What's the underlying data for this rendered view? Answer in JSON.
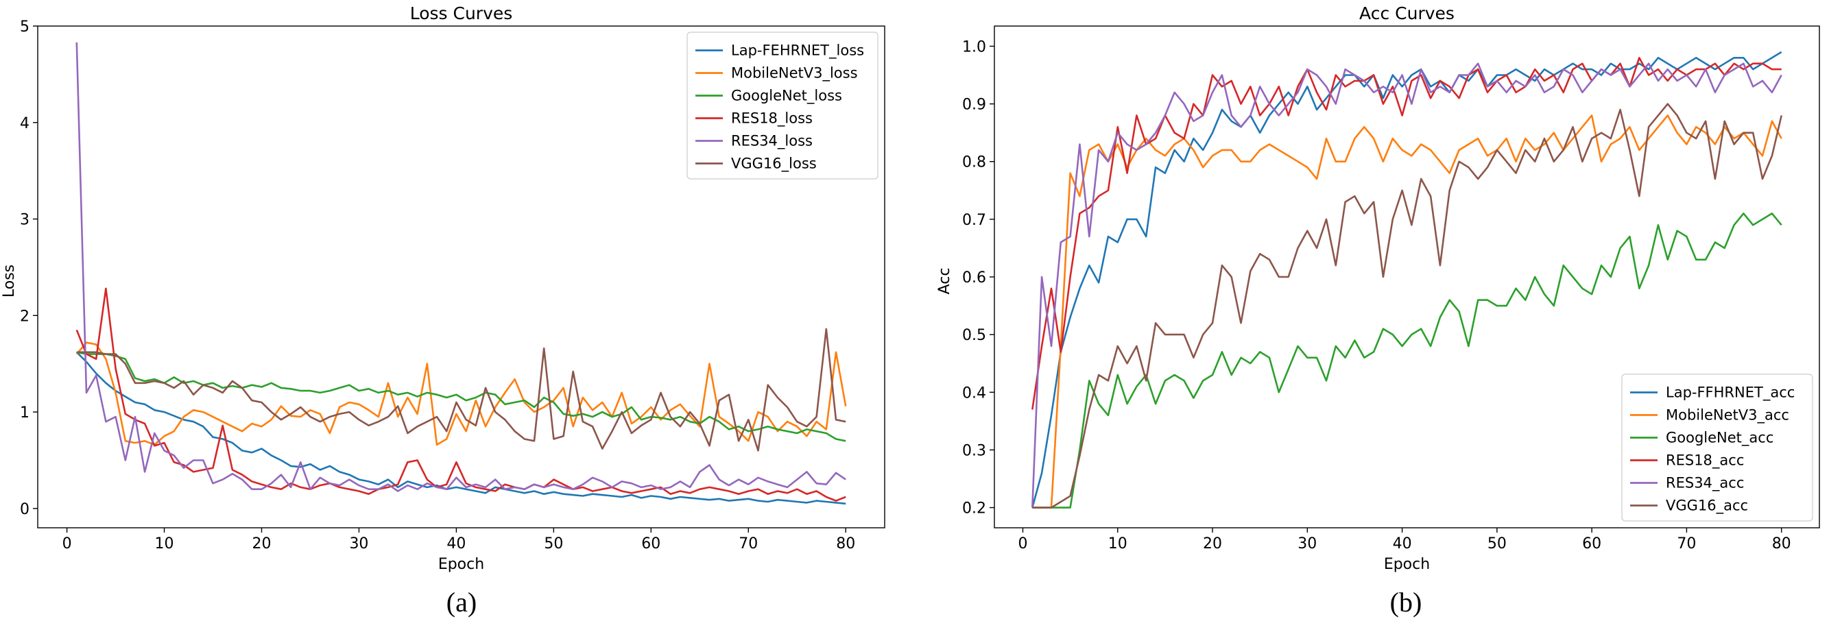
{
  "chart_data": [
    {
      "type": "line",
      "title": "Loss Curves",
      "xlabel": "Epoch",
      "ylabel": "Loss",
      "caption": "(a)",
      "xlim": [
        -3,
        84
      ],
      "ylim": [
        -0.2,
        5.0
      ],
      "xticks": [
        0,
        10,
        20,
        30,
        40,
        50,
        60,
        70,
        80
      ],
      "yticks": [
        0,
        1,
        2,
        3,
        4,
        5
      ],
      "legend_position": "top-right",
      "series": [
        {
          "name": "Lap-FEHRNET_loss",
          "color": "#1f77b4",
          "values": [
            1.62,
            1.52,
            1.4,
            1.3,
            1.22,
            1.16,
            1.1,
            1.08,
            1.02,
            1.0,
            0.96,
            0.92,
            0.9,
            0.85,
            0.74,
            0.72,
            0.68,
            0.6,
            0.58,
            0.62,
            0.55,
            0.5,
            0.44,
            0.43,
            0.46,
            0.4,
            0.44,
            0.38,
            0.35,
            0.3,
            0.28,
            0.25,
            0.3,
            0.22,
            0.28,
            0.25,
            0.22,
            0.24,
            0.2,
            0.22,
            0.2,
            0.18,
            0.16,
            0.22,
            0.2,
            0.18,
            0.16,
            0.18,
            0.15,
            0.17,
            0.15,
            0.14,
            0.13,
            0.15,
            0.14,
            0.13,
            0.12,
            0.14,
            0.11,
            0.13,
            0.12,
            0.1,
            0.12,
            0.11,
            0.1,
            0.09,
            0.1,
            0.08,
            0.09,
            0.1,
            0.08,
            0.07,
            0.09,
            0.08,
            0.07,
            0.06,
            0.08,
            0.07,
            0.06,
            0.05
          ]
        },
        {
          "name": "MobileNetV3_loss",
          "color": "#ff7f0e",
          "values": [
            1.6,
            1.72,
            1.7,
            1.55,
            1.2,
            0.7,
            0.68,
            0.7,
            0.66,
            0.75,
            0.8,
            0.95,
            1.02,
            1.0,
            0.95,
            0.9,
            0.85,
            0.8,
            0.88,
            0.85,
            0.92,
            1.06,
            0.96,
            0.95,
            1.02,
            0.98,
            0.78,
            1.05,
            1.1,
            1.08,
            1.02,
            0.95,
            1.3,
            0.95,
            1.15,
            0.98,
            1.5,
            0.66,
            0.72,
            0.98,
            0.8,
            1.12,
            0.85,
            1.05,
            1.2,
            1.34,
            1.1,
            1.0,
            1.05,
            1.12,
            1.25,
            0.85,
            1.15,
            1.02,
            1.1,
            0.95,
            1.2,
            0.88,
            0.95,
            1.05,
            0.92,
            1.02,
            1.08,
            0.96,
            0.85,
            1.5,
            0.95,
            0.88,
            0.8,
            0.7,
            1.0,
            0.95,
            0.8,
            0.9,
            0.85,
            0.75,
            0.9,
            0.82,
            1.62,
            1.06
          ]
        },
        {
          "name": "GoogleNet_loss",
          "color": "#2ca02c",
          "values": [
            1.62,
            1.6,
            1.6,
            1.6,
            1.58,
            1.55,
            1.35,
            1.32,
            1.34,
            1.3,
            1.36,
            1.3,
            1.32,
            1.28,
            1.3,
            1.25,
            1.27,
            1.25,
            1.28,
            1.26,
            1.3,
            1.25,
            1.24,
            1.22,
            1.22,
            1.2,
            1.22,
            1.25,
            1.28,
            1.22,
            1.24,
            1.2,
            1.22,
            1.18,
            1.2,
            1.16,
            1.2,
            1.18,
            1.15,
            1.18,
            1.12,
            1.15,
            1.2,
            1.18,
            1.08,
            1.1,
            1.12,
            1.05,
            1.15,
            1.1,
            0.98,
            0.96,
            0.98,
            0.95,
            1.0,
            0.95,
            0.98,
            1.05,
            0.92,
            0.95,
            0.94,
            0.92,
            0.95,
            0.9,
            0.88,
            0.95,
            0.9,
            0.82,
            0.85,
            0.8,
            0.82,
            0.85,
            0.82,
            0.8,
            0.78,
            0.82,
            0.8,
            0.78,
            0.72,
            0.7
          ]
        },
        {
          "name": "RES18_loss",
          "color": "#d62728",
          "values": [
            1.85,
            1.6,
            1.55,
            2.28,
            1.45,
            0.98,
            0.92,
            0.88,
            0.65,
            0.68,
            0.48,
            0.45,
            0.38,
            0.4,
            0.42,
            0.86,
            0.4,
            0.35,
            0.28,
            0.25,
            0.22,
            0.2,
            0.26,
            0.22,
            0.2,
            0.24,
            0.26,
            0.22,
            0.2,
            0.18,
            0.15,
            0.2,
            0.22,
            0.25,
            0.48,
            0.5,
            0.3,
            0.22,
            0.25,
            0.48,
            0.26,
            0.22,
            0.2,
            0.18,
            0.25,
            0.22,
            0.2,
            0.25,
            0.22,
            0.3,
            0.25,
            0.2,
            0.22,
            0.18,
            0.2,
            0.22,
            0.18,
            0.16,
            0.18,
            0.2,
            0.22,
            0.15,
            0.18,
            0.16,
            0.2,
            0.22,
            0.2,
            0.18,
            0.15,
            0.18,
            0.2,
            0.15,
            0.18,
            0.16,
            0.2,
            0.15,
            0.18,
            0.12,
            0.08,
            0.12
          ]
        },
        {
          "name": "RES34_loss",
          "color": "#9467bd",
          "values": [
            4.83,
            1.2,
            1.38,
            0.9,
            0.95,
            0.5,
            0.95,
            0.38,
            0.78,
            0.6,
            0.55,
            0.42,
            0.5,
            0.5,
            0.26,
            0.3,
            0.36,
            0.3,
            0.2,
            0.2,
            0.26,
            0.35,
            0.22,
            0.48,
            0.2,
            0.32,
            0.26,
            0.24,
            0.3,
            0.24,
            0.2,
            0.2,
            0.25,
            0.18,
            0.24,
            0.2,
            0.26,
            0.22,
            0.2,
            0.32,
            0.22,
            0.25,
            0.22,
            0.3,
            0.2,
            0.22,
            0.2,
            0.25,
            0.22,
            0.25,
            0.22,
            0.2,
            0.25,
            0.32,
            0.28,
            0.22,
            0.28,
            0.26,
            0.22,
            0.24,
            0.2,
            0.22,
            0.28,
            0.22,
            0.38,
            0.45,
            0.3,
            0.24,
            0.3,
            0.25,
            0.32,
            0.28,
            0.25,
            0.22,
            0.3,
            0.38,
            0.26,
            0.25,
            0.37,
            0.3
          ]
        },
        {
          "name": "VGG16_loss",
          "color": "#8c564b",
          "values": [
            1.62,
            1.62,
            1.62,
            1.6,
            1.6,
            1.5,
            1.3,
            1.3,
            1.32,
            1.3,
            1.25,
            1.32,
            1.18,
            1.28,
            1.25,
            1.2,
            1.32,
            1.25,
            1.12,
            1.1,
            1.0,
            0.92,
            0.98,
            1.05,
            0.95,
            0.9,
            0.95,
            0.98,
            1.0,
            0.92,
            0.86,
            0.9,
            0.95,
            1.06,
            0.78,
            0.85,
            0.9,
            0.95,
            0.8,
            1.1,
            0.92,
            0.86,
            1.25,
            1.0,
            0.92,
            0.8,
            0.72,
            0.7,
            1.66,
            0.72,
            0.75,
            1.42,
            0.9,
            0.85,
            0.62,
            0.8,
            1.0,
            0.78,
            0.86,
            0.92,
            1.2,
            0.95,
            0.85,
            1.0,
            0.88,
            0.65,
            1.12,
            1.18,
            0.7,
            0.92,
            0.6,
            1.28,
            1.15,
            1.05,
            0.9,
            0.85,
            0.95,
            1.86,
            0.92,
            0.9
          ]
        }
      ]
    },
    {
      "type": "line",
      "title": "Acc Curves",
      "xlabel": "Epoch",
      "ylabel": "Acc",
      "caption": "(b)",
      "xlim": [
        -3,
        84
      ],
      "ylim": [
        0.165,
        1.035
      ],
      "xticks": [
        0,
        10,
        20,
        30,
        40,
        50,
        60,
        70,
        80
      ],
      "yticks": [
        0.2,
        0.3,
        0.4,
        0.5,
        0.6,
        0.7,
        0.8,
        0.9,
        1.0
      ],
      "legend_position": "bottom-right",
      "series": [
        {
          "name": "Lap-FFHRNET_acc",
          "color": "#1f77b4",
          "values": [
            0.2,
            0.26,
            0.36,
            0.47,
            0.53,
            0.58,
            0.62,
            0.59,
            0.67,
            0.66,
            0.7,
            0.7,
            0.67,
            0.79,
            0.78,
            0.82,
            0.8,
            0.84,
            0.82,
            0.85,
            0.89,
            0.87,
            0.86,
            0.88,
            0.85,
            0.88,
            0.9,
            0.92,
            0.9,
            0.93,
            0.89,
            0.91,
            0.93,
            0.95,
            0.95,
            0.93,
            0.95,
            0.91,
            0.95,
            0.93,
            0.95,
            0.96,
            0.93,
            0.94,
            0.92,
            0.95,
            0.94,
            0.96,
            0.93,
            0.95,
            0.95,
            0.96,
            0.95,
            0.94,
            0.96,
            0.95,
            0.96,
            0.97,
            0.96,
            0.96,
            0.95,
            0.97,
            0.96,
            0.96,
            0.97,
            0.96,
            0.98,
            0.97,
            0.96,
            0.97,
            0.98,
            0.97,
            0.96,
            0.97,
            0.98,
            0.98,
            0.96,
            0.97,
            0.98,
            0.99
          ]
        },
        {
          "name": "MobileNetV3_acc",
          "color": "#ff7f0e",
          "values": [
            0.2,
            0.2,
            0.2,
            0.48,
            0.78,
            0.74,
            0.82,
            0.83,
            0.8,
            0.83,
            0.79,
            0.82,
            0.84,
            0.82,
            0.81,
            0.83,
            0.84,
            0.82,
            0.79,
            0.81,
            0.82,
            0.82,
            0.8,
            0.8,
            0.82,
            0.83,
            0.82,
            0.81,
            0.8,
            0.79,
            0.77,
            0.84,
            0.8,
            0.8,
            0.84,
            0.86,
            0.84,
            0.8,
            0.84,
            0.82,
            0.81,
            0.83,
            0.82,
            0.8,
            0.78,
            0.82,
            0.83,
            0.84,
            0.81,
            0.82,
            0.84,
            0.8,
            0.84,
            0.82,
            0.83,
            0.85,
            0.82,
            0.84,
            0.86,
            0.88,
            0.8,
            0.83,
            0.84,
            0.86,
            0.82,
            0.84,
            0.86,
            0.88,
            0.85,
            0.83,
            0.86,
            0.85,
            0.83,
            0.86,
            0.84,
            0.85,
            0.83,
            0.81,
            0.87,
            0.84
          ]
        },
        {
          "name": "GoogleNet_acc",
          "color": "#2ca02c",
          "values": [
            0.2,
            0.2,
            0.2,
            0.2,
            0.2,
            0.3,
            0.42,
            0.38,
            0.36,
            0.43,
            0.38,
            0.41,
            0.43,
            0.38,
            0.42,
            0.43,
            0.42,
            0.39,
            0.42,
            0.43,
            0.47,
            0.43,
            0.46,
            0.45,
            0.47,
            0.46,
            0.4,
            0.44,
            0.48,
            0.46,
            0.46,
            0.42,
            0.48,
            0.46,
            0.49,
            0.46,
            0.47,
            0.51,
            0.5,
            0.48,
            0.5,
            0.51,
            0.48,
            0.53,
            0.56,
            0.54,
            0.48,
            0.56,
            0.56,
            0.55,
            0.55,
            0.58,
            0.56,
            0.6,
            0.57,
            0.55,
            0.62,
            0.6,
            0.58,
            0.57,
            0.62,
            0.6,
            0.65,
            0.67,
            0.58,
            0.62,
            0.69,
            0.63,
            0.68,
            0.67,
            0.63,
            0.63,
            0.66,
            0.65,
            0.69,
            0.71,
            0.69,
            0.7,
            0.71,
            0.69
          ]
        },
        {
          "name": "RES18_acc",
          "color": "#d62728",
          "values": [
            0.37,
            0.48,
            0.58,
            0.47,
            0.6,
            0.71,
            0.72,
            0.74,
            0.75,
            0.86,
            0.78,
            0.88,
            0.83,
            0.84,
            0.88,
            0.85,
            0.84,
            0.9,
            0.88,
            0.95,
            0.93,
            0.94,
            0.9,
            0.93,
            0.88,
            0.9,
            0.93,
            0.88,
            0.93,
            0.96,
            0.92,
            0.89,
            0.95,
            0.93,
            0.94,
            0.94,
            0.95,
            0.9,
            0.93,
            0.88,
            0.94,
            0.95,
            0.91,
            0.94,
            0.93,
            0.91,
            0.95,
            0.96,
            0.92,
            0.94,
            0.95,
            0.92,
            0.93,
            0.96,
            0.94,
            0.95,
            0.92,
            0.96,
            0.97,
            0.94,
            0.96,
            0.95,
            0.97,
            0.93,
            0.98,
            0.95,
            0.96,
            0.94,
            0.96,
            0.95,
            0.96,
            0.96,
            0.97,
            0.95,
            0.97,
            0.96,
            0.97,
            0.97,
            0.96,
            0.96
          ]
        },
        {
          "name": "RES34_acc",
          "color": "#9467bd",
          "values": [
            0.2,
            0.6,
            0.48,
            0.66,
            0.67,
            0.83,
            0.67,
            0.82,
            0.8,
            0.85,
            0.83,
            0.82,
            0.83,
            0.85,
            0.88,
            0.92,
            0.9,
            0.87,
            0.88,
            0.92,
            0.95,
            0.88,
            0.86,
            0.88,
            0.93,
            0.9,
            0.88,
            0.9,
            0.92,
            0.96,
            0.95,
            0.93,
            0.9,
            0.96,
            0.95,
            0.94,
            0.92,
            0.93,
            0.92,
            0.95,
            0.9,
            0.96,
            0.92,
            0.93,
            0.92,
            0.95,
            0.95,
            0.97,
            0.93,
            0.94,
            0.92,
            0.94,
            0.93,
            0.95,
            0.92,
            0.93,
            0.96,
            0.95,
            0.92,
            0.94,
            0.96,
            0.95,
            0.96,
            0.93,
            0.95,
            0.97,
            0.94,
            0.96,
            0.94,
            0.95,
            0.93,
            0.96,
            0.92,
            0.95,
            0.96,
            0.97,
            0.93,
            0.94,
            0.92,
            0.95
          ]
        },
        {
          "name": "VGG16_acc",
          "color": "#8c564b",
          "values": [
            0.2,
            0.2,
            0.2,
            0.21,
            0.22,
            0.29,
            0.37,
            0.43,
            0.42,
            0.48,
            0.45,
            0.48,
            0.42,
            0.52,
            0.5,
            0.5,
            0.5,
            0.46,
            0.5,
            0.52,
            0.62,
            0.6,
            0.52,
            0.61,
            0.64,
            0.63,
            0.6,
            0.6,
            0.65,
            0.68,
            0.65,
            0.7,
            0.62,
            0.73,
            0.74,
            0.71,
            0.73,
            0.6,
            0.7,
            0.75,
            0.69,
            0.77,
            0.74,
            0.62,
            0.75,
            0.8,
            0.79,
            0.77,
            0.79,
            0.82,
            0.8,
            0.78,
            0.82,
            0.8,
            0.84,
            0.8,
            0.82,
            0.86,
            0.8,
            0.84,
            0.85,
            0.84,
            0.89,
            0.82,
            0.74,
            0.86,
            0.88,
            0.9,
            0.88,
            0.85,
            0.84,
            0.87,
            0.77,
            0.87,
            0.83,
            0.85,
            0.85,
            0.77,
            0.81,
            0.88
          ]
        }
      ]
    }
  ]
}
